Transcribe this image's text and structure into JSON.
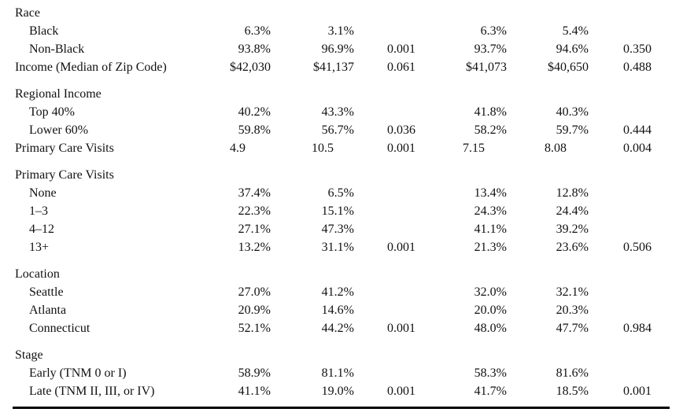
{
  "rows": [
    {
      "label": "Race",
      "indent": false,
      "cols": [
        "",
        "",
        "",
        "",
        "",
        ""
      ]
    },
    {
      "label": "Black",
      "indent": true,
      "cols": [
        "6.3%",
        "3.1%",
        "",
        "6.3%",
        "5.4%",
        ""
      ]
    },
    {
      "label": "Non-Black",
      "indent": true,
      "cols": [
        "93.8%",
        "96.9%",
        "0.001",
        "93.7%",
        "94.6%",
        "0.350"
      ]
    },
    {
      "label": "Income (Median of Zip Code)",
      "indent": false,
      "cols": [
        "$42,030",
        "$41,137",
        "0.061",
        "$41,073",
        "$40,650",
        "0.488"
      ]
    },
    {
      "label": "Regional Income",
      "indent": false,
      "cols": [
        "",
        "",
        "",
        "",
        "",
        ""
      ]
    },
    {
      "label": "Top 40%",
      "indent": true,
      "cols": [
        "40.2%",
        "43.3%",
        "",
        "41.8%",
        "40.3%",
        ""
      ]
    },
    {
      "label": "Lower 60%",
      "indent": true,
      "cols": [
        "59.8%",
        "56.7%",
        "0.036",
        "58.2%",
        "59.7%",
        "0.444"
      ]
    },
    {
      "label": "Primary Care Visits",
      "indent": false,
      "cols": [
        "4.9",
        "10.5",
        "0.001",
        "7.15",
        "8.08",
        "0.004"
      ]
    },
    {
      "label": "Primary Care Visits",
      "indent": false,
      "cols": [
        "",
        "",
        "",
        "",
        "",
        ""
      ]
    },
    {
      "label": "None",
      "indent": true,
      "cols": [
        "37.4%",
        "6.5%",
        "",
        "13.4%",
        "12.8%",
        ""
      ]
    },
    {
      "label": "1–3",
      "indent": true,
      "cols": [
        "22.3%",
        "15.1%",
        "",
        "24.3%",
        "24.4%",
        ""
      ]
    },
    {
      "label": "4–12",
      "indent": true,
      "cols": [
        "27.1%",
        "47.3%",
        "",
        "41.1%",
        "39.2%",
        ""
      ]
    },
    {
      "label": "13+",
      "indent": true,
      "cols": [
        "13.2%",
        "31.1%",
        "0.001",
        "21.3%",
        "23.6%",
        "0.506"
      ]
    },
    {
      "label": "Location",
      "indent": false,
      "cols": [
        "",
        "",
        "",
        "",
        "",
        ""
      ]
    },
    {
      "label": "Seattle",
      "indent": true,
      "cols": [
        "27.0%",
        "41.2%",
        "",
        "32.0%",
        "32.1%",
        ""
      ]
    },
    {
      "label": "Atlanta",
      "indent": true,
      "cols": [
        "20.9%",
        "14.6%",
        "",
        "20.0%",
        "20.3%",
        ""
      ]
    },
    {
      "label": "Connecticut",
      "indent": true,
      "cols": [
        "52.1%",
        "44.2%",
        "0.001",
        "48.0%",
        "47.7%",
        "0.984"
      ]
    },
    {
      "label": "Stage",
      "indent": false,
      "cols": [
        "",
        "",
        "",
        "",
        "",
        ""
      ]
    },
    {
      "label": "Early (TNM 0 or I)",
      "indent": true,
      "cols": [
        "58.9%",
        "81.1%",
        "",
        "58.3%",
        "81.6%",
        ""
      ]
    },
    {
      "label": "Late (TNM II, III, or IV)",
      "indent": true,
      "cols": [
        "41.1%",
        "19.0%",
        "0.001",
        "41.7%",
        "18.5%",
        "0.001"
      ]
    }
  ]
}
